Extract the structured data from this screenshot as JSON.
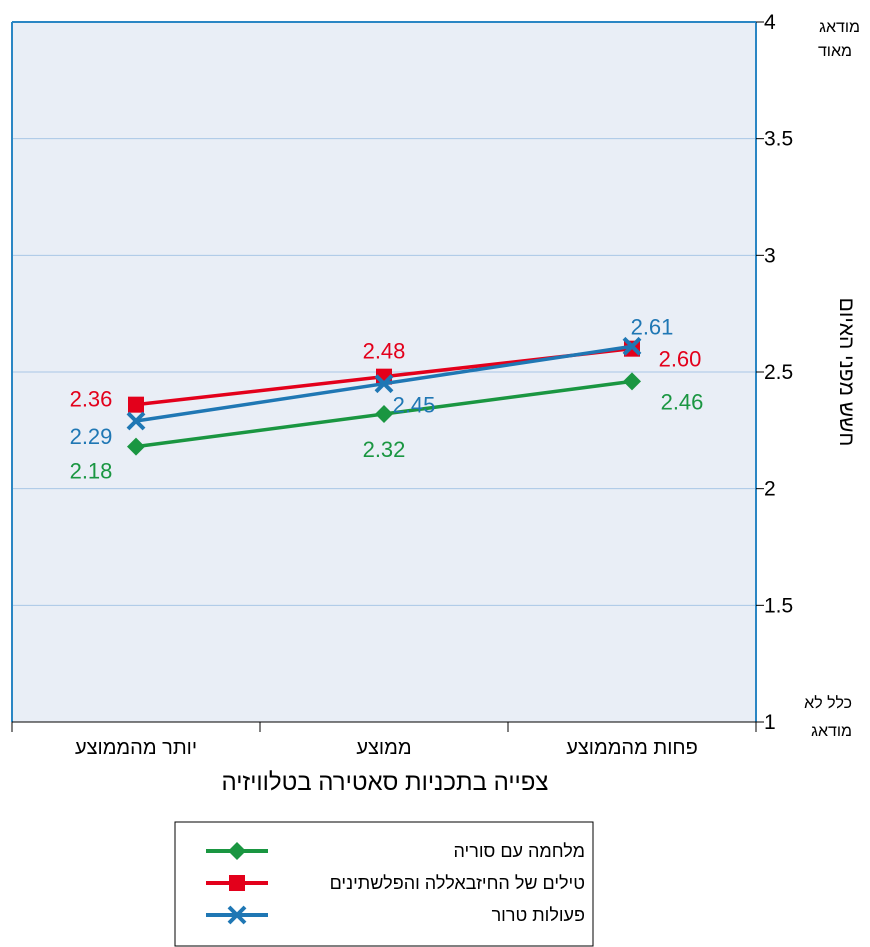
{
  "chart_data": {
    "type": "line",
    "categories": [
      "פחות מהממוצע",
      "ממוצע",
      "יותר מהממוצע"
    ],
    "series": [
      {
        "name": "מלחמה עם סוריה",
        "values": [
          2.46,
          2.32,
          2.18
        ],
        "labels": [
          "2.46",
          "2.32",
          "2.18"
        ],
        "color": "#1a9641",
        "marker": "diamond"
      },
      {
        "name": "טילים של החיזבאללה והפלשתינים",
        "values": [
          2.6,
          2.48,
          2.36
        ],
        "labels": [
          "2.60",
          "2.48",
          "2.36"
        ],
        "color": "#e3001b",
        "marker": "square"
      },
      {
        "name": "פעולות טרור",
        "values": [
          2.61,
          2.45,
          2.29
        ],
        "labels": [
          "2.61",
          "2.45",
          "2.29"
        ],
        "color": "#1f77b4",
        "marker": "x"
      }
    ],
    "xlabel": "צפייה בתכניות סאטירה בטלוויזיה",
    "ylabel": "חשש מפני האיום",
    "ylim": [
      1,
      4
    ],
    "yticks": [
      "1",
      "1.5",
      "2",
      "2.5",
      "3",
      "3.5",
      "4"
    ],
    "y_end_labels": {
      "top_line1": "מודאג",
      "top_line2": "מאוד",
      "bottom_line1": "כלל לא",
      "bottom_line2": "מודאג"
    },
    "grid": true,
    "legend_position": "bottom-center",
    "colors": {
      "plot_background": "#e9eef6",
      "frame": "#2a86c4",
      "gridline": "#a9c7e6"
    }
  }
}
